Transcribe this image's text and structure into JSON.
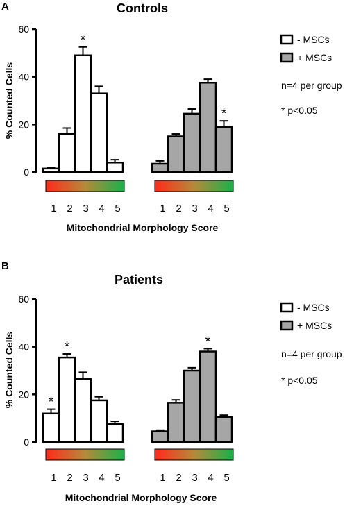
{
  "chart_data": [
    {
      "type": "bar",
      "panel_label": "A",
      "title": "Controls",
      "ylabel": "% Counted Cells",
      "xlabel": "Mitochondrial Morphology Score",
      "ylim": [
        0,
        60
      ],
      "yticks": [
        "0",
        "20",
        "40",
        "60"
      ],
      "categories": [
        "1",
        "2",
        "3",
        "4",
        "5"
      ],
      "series": [
        {
          "name": "- MSCs",
          "values": [
            1.5,
            16,
            49,
            33,
            4
          ],
          "errors": [
            0.5,
            2.5,
            3.5,
            3,
            1.2
          ],
          "significant": [
            false,
            false,
            true,
            false,
            false
          ]
        },
        {
          "name": "+ MSCs",
          "values": [
            3.5,
            15,
            24.5,
            37.5,
            19
          ],
          "errors": [
            1.2,
            1,
            2,
            1.5,
            2.5
          ],
          "significant": [
            false,
            false,
            false,
            false,
            true
          ]
        }
      ],
      "legend": {
        "entries": [
          "- MSCs",
          "+ MSCs"
        ],
        "notes": [
          "n=4 per group",
          "* p<0.05"
        ],
        "placement": "right"
      }
    },
    {
      "type": "bar",
      "panel_label": "B",
      "title": "Patients",
      "ylabel": "% Counted Cells",
      "xlabel": "Mitochondrial Morphology Score",
      "ylim": [
        0,
        60
      ],
      "yticks": [
        "0",
        "20",
        "40",
        "60"
      ],
      "categories": [
        "1",
        "2",
        "3",
        "4",
        "5"
      ],
      "series": [
        {
          "name": "- MSCs",
          "values": [
            12,
            35.5,
            26.5,
            17.5,
            7.5
          ],
          "errors": [
            1.8,
            1.5,
            2.8,
            1.5,
            1.2
          ],
          "significant": [
            true,
            true,
            false,
            false,
            false
          ]
        },
        {
          "name": "+ MSCs",
          "values": [
            4.5,
            16.5,
            30,
            38,
            10.5
          ],
          "errors": [
            0.5,
            1.2,
            1.2,
            1.2,
            0.8
          ],
          "significant": [
            false,
            false,
            false,
            true,
            false
          ]
        }
      ],
      "legend": {
        "entries": [
          "- MSCs",
          "+ MSCs"
        ],
        "notes": [
          "n=4 per group",
          "* p<0.05"
        ],
        "placement": "right"
      }
    }
  ],
  "colors": {
    "minus_fill": "#ffffff",
    "plus_fill": "#a6a6a6",
    "stroke": "#000000",
    "gradient_start": "#ff2a1a",
    "gradient_mid": "#b58a3a",
    "gradient_end": "#17b24a"
  }
}
